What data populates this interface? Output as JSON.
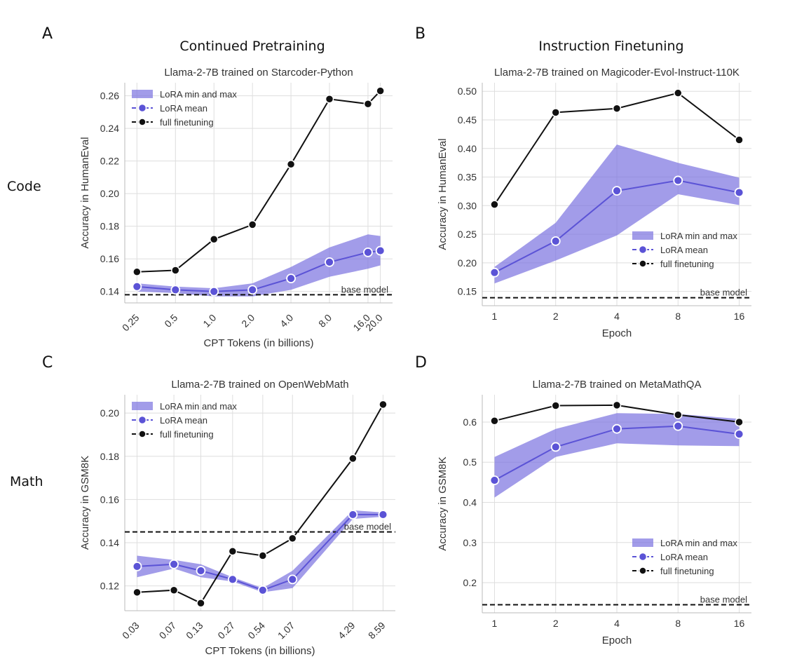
{
  "figure": {
    "panel_letters": [
      "A",
      "B",
      "C",
      "D"
    ],
    "column_titles": [
      "Continued Pretraining",
      "Instruction Finetuning"
    ],
    "row_labels": [
      "Code",
      "Math"
    ]
  },
  "colors": {
    "lora_fill": "#7b72df",
    "lora_line": "#5b53d6",
    "full": "#111111",
    "grid": "#dedede"
  },
  "chart_data": [
    {
      "id": "A",
      "type": "line",
      "title": "Llama-2-7B trained on Starcoder-Python",
      "xlabel": "CPT Tokens (in billions)",
      "ylabel": "Accuracy in HumanEval",
      "x_scale": "log",
      "x": [
        0.25,
        0.5,
        1.0,
        2.0,
        4.0,
        8.0,
        16.0,
        20.0
      ],
      "x_tick_labels": [
        "0.25",
        "0.5",
        "1.0",
        "2.0",
        "4.0",
        "8.0",
        "16.0",
        "20.0"
      ],
      "x_tick_rotation": -45,
      "ylim": [
        0.133,
        0.268
      ],
      "y_ticks": [
        0.14,
        0.16,
        0.18,
        0.2,
        0.22,
        0.24,
        0.26
      ],
      "y_tick_labels": [
        "0.14",
        "0.16",
        "0.18",
        "0.20",
        "0.22",
        "0.24",
        "0.26"
      ],
      "full_finetuning": [
        0.152,
        0.153,
        0.172,
        0.181,
        0.218,
        0.258,
        0.255,
        0.263
      ],
      "lora_mean": [
        0.143,
        0.141,
        0.14,
        0.141,
        0.148,
        0.158,
        0.164,
        0.165
      ],
      "lora_min": [
        0.14,
        0.139,
        0.137,
        0.137,
        0.141,
        0.149,
        0.154,
        0.156
      ],
      "lora_max": [
        0.145,
        0.143,
        0.142,
        0.145,
        0.155,
        0.167,
        0.175,
        0.174
      ],
      "base_model": 0.138,
      "base_model_label": "base model",
      "legend": [
        "LoRA min and max",
        "LoRA mean",
        "full finetuning"
      ],
      "legend_loc": "upper-left"
    },
    {
      "id": "B",
      "type": "line",
      "title": "Llama-2-7B trained on Magicoder-Evol-Instruct-110K",
      "xlabel": "Epoch",
      "ylabel": "Accuracy in HumanEval",
      "x_scale": "log",
      "x": [
        1,
        2,
        4,
        8,
        16
      ],
      "x_tick_labels": [
        "1",
        "2",
        "4",
        "8",
        "16"
      ],
      "x_tick_rotation": 0,
      "ylim": [
        0.125,
        0.515
      ],
      "y_ticks": [
        0.15,
        0.2,
        0.25,
        0.3,
        0.35,
        0.4,
        0.45,
        0.5
      ],
      "y_tick_labels": [
        "0.15",
        "0.20",
        "0.25",
        "0.30",
        "0.35",
        "0.40",
        "0.45",
        "0.50"
      ],
      "full_finetuning": [
        0.302,
        0.463,
        0.47,
        0.497,
        0.415
      ],
      "lora_mean": [
        0.183,
        0.238,
        0.326,
        0.344,
        0.323
      ],
      "lora_min": [
        0.164,
        0.204,
        0.248,
        0.32,
        0.301
      ],
      "lora_max": [
        0.193,
        0.27,
        0.407,
        0.375,
        0.349
      ],
      "base_model": 0.139,
      "base_model_label": "base model",
      "legend": [
        "LoRA min and max",
        "LoRA mean",
        "full finetuning"
      ],
      "legend_loc": "lower-right"
    },
    {
      "id": "C",
      "type": "line",
      "title": "Llama-2-7B trained on OpenWebMath",
      "xlabel": "CPT Tokens (in billions)",
      "ylabel": "Accuracy in GSM8K",
      "x_scale": "log",
      "x": [
        0.03,
        0.07,
        0.13,
        0.27,
        0.54,
        1.07,
        4.29,
        8.59
      ],
      "x_tick_labels": [
        "0.03",
        "0.07",
        "0.13",
        "0.27",
        "0.54",
        "1.07",
        "4.29",
        "8.59"
      ],
      "x_tick_rotation": -45,
      "ylim": [
        0.1085,
        0.2085
      ],
      "y_ticks": [
        0.12,
        0.14,
        0.16,
        0.18,
        0.2
      ],
      "y_tick_labels": [
        "0.12",
        "0.14",
        "0.16",
        "0.18",
        "0.20"
      ],
      "full_finetuning": [
        0.117,
        0.118,
        0.112,
        0.136,
        0.134,
        0.142,
        0.179,
        0.204
      ],
      "lora_mean": [
        0.129,
        0.13,
        0.127,
        0.123,
        0.118,
        0.123,
        0.153,
        0.153
      ],
      "lora_min": [
        0.124,
        0.128,
        0.124,
        0.122,
        0.117,
        0.119,
        0.151,
        0.152
      ],
      "lora_max": [
        0.134,
        0.132,
        0.13,
        0.124,
        0.119,
        0.127,
        0.155,
        0.154
      ],
      "base_model": 0.145,
      "base_model_label": "base model",
      "legend": [
        "LoRA min and max",
        "LoRA mean",
        "full finetuning"
      ],
      "legend_loc": "upper-left"
    },
    {
      "id": "D",
      "type": "line",
      "title": "Llama-2-7B trained on MetaMathQA",
      "xlabel": "Epoch",
      "ylabel": "Accuracy in GSM8K",
      "x_scale": "log",
      "x": [
        1,
        2,
        4,
        8,
        16
      ],
      "x_tick_labels": [
        "1",
        "2",
        "4",
        "8",
        "16"
      ],
      "x_tick_rotation": 0,
      "ylim": [
        0.125,
        0.668
      ],
      "y_ticks": [
        0.2,
        0.3,
        0.4,
        0.5,
        0.6
      ],
      "y_tick_labels": [
        "0.2",
        "0.3",
        "0.4",
        "0.5",
        "0.6"
      ],
      "full_finetuning": [
        0.603,
        0.641,
        0.642,
        0.618,
        0.6
      ],
      "lora_mean": [
        0.455,
        0.538,
        0.583,
        0.59,
        0.57
      ],
      "lora_min": [
        0.412,
        0.513,
        0.547,
        0.542,
        0.54
      ],
      "lora_max": [
        0.513,
        0.583,
        0.622,
        0.62,
        0.608
      ],
      "base_model": 0.145,
      "base_model_label": "base model",
      "legend": [
        "LoRA min and max",
        "LoRA mean",
        "full finetuning"
      ],
      "legend_loc": "lower-right"
    }
  ]
}
